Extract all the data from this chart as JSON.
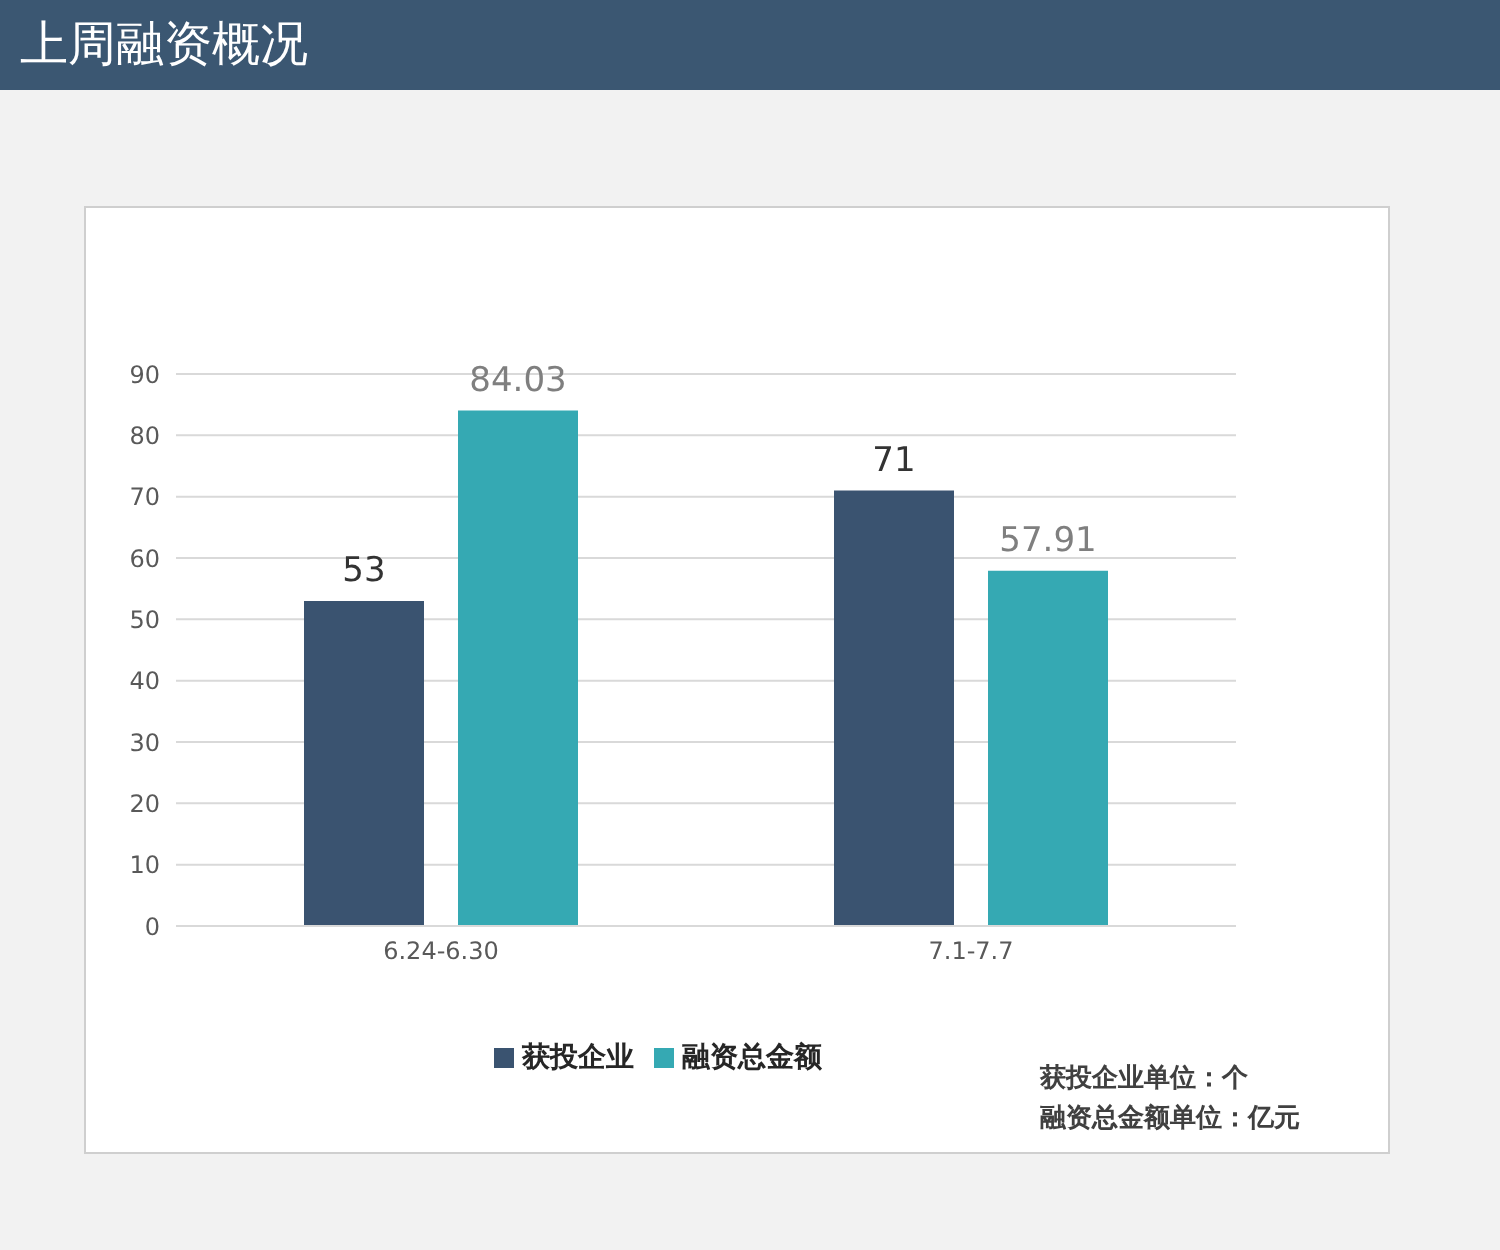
{
  "chart_data": {
    "type": "bar",
    "title": "上周融资概况",
    "categories": [
      "6.24-6.30",
      "7.1-7.7"
    ],
    "series": [
      {
        "name": "获投企业",
        "color": "#3a5370",
        "values": [
          53,
          71
        ]
      },
      {
        "name": "融资总金额",
        "color": "#35a9b3",
        "values": [
          84.03,
          57.91
        ]
      }
    ],
    "ylim": [
      0,
      90
    ],
    "yticks": [
      0,
      10,
      20,
      30,
      40,
      50,
      60,
      70,
      80,
      90
    ],
    "grid": "y",
    "legend": "bottom",
    "data_labels": true,
    "annotations": [
      "获投企业单位：个",
      "融资总金额单位：亿元"
    ]
  }
}
